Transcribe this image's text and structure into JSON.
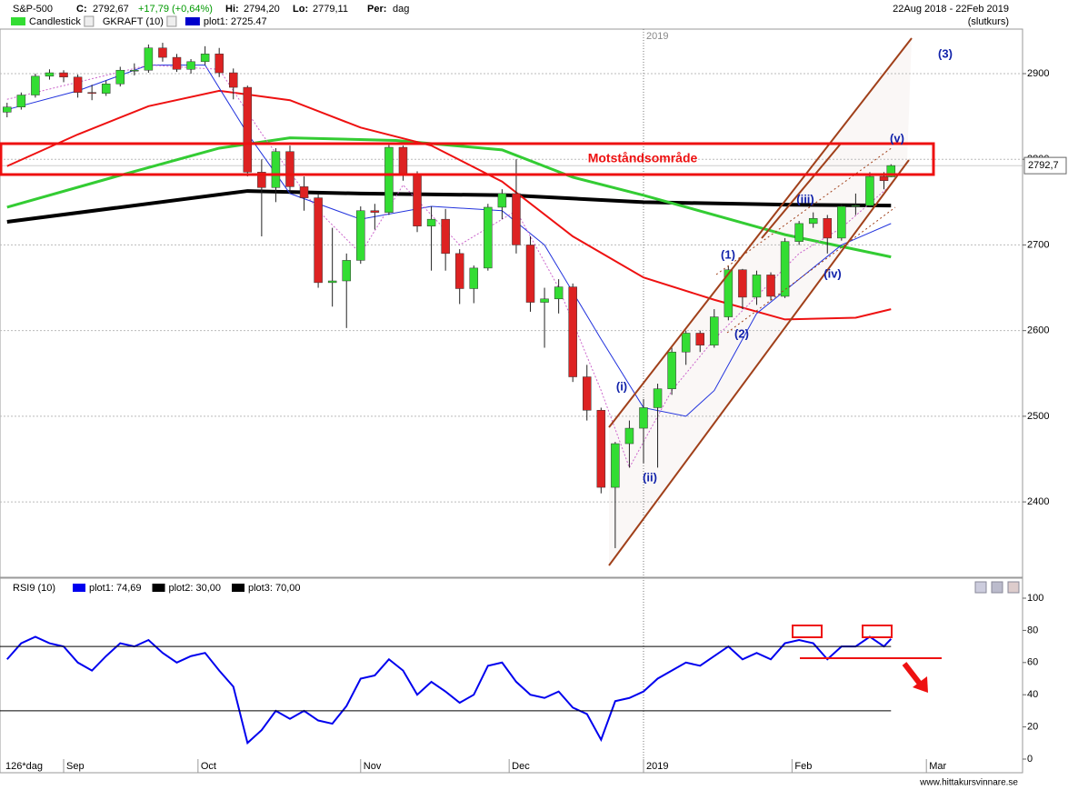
{
  "header": {
    "symbol": "S&P-500",
    "close_label": "C:",
    "close": "2792,67",
    "change": "+17,79 (+0,64%)",
    "hi_label": "Hi:",
    "hi": "2794,20",
    "lo_label": "Lo:",
    "lo": "2779,11",
    "per_label": "Per:",
    "per": "dag",
    "range": "22Aug 2018 - 22Feb 2019",
    "mode": "(slutkurs)"
  },
  "legend": [
    {
      "name": "Candlestick",
      "color": "#33dd33"
    },
    {
      "name": "GKRAFT (10)"
    },
    {
      "name": "plot1: 2725.47",
      "color": "#0000cc"
    }
  ],
  "chart_data": [
    {
      "type": "candlestick",
      "x": [
        0,
        2,
        4,
        6,
        8,
        10,
        12,
        14,
        16,
        18,
        20,
        22,
        24,
        26,
        28,
        30,
        32,
        34,
        36,
        38,
        40,
        42,
        44,
        46,
        48,
        50,
        52,
        54,
        56,
        58,
        60,
        62,
        64,
        66,
        68,
        70,
        72,
        74,
        76,
        78,
        80,
        82,
        84,
        86,
        88,
        90,
        92,
        94,
        96,
        98,
        100,
        102,
        104,
        106,
        108,
        110,
        112,
        114,
        116,
        118,
        120,
        122,
        124,
        125
      ],
      "ohlc": [
        [
          2855,
          2866,
          2849,
          2861
        ],
        [
          2861,
          2878,
          2858,
          2875
        ],
        [
          2875,
          2900,
          2872,
          2897
        ],
        [
          2897,
          2905,
          2893,
          2901
        ],
        [
          2901,
          2904,
          2890,
          2896
        ],
        [
          2896,
          2899,
          2872,
          2878
        ],
        [
          2878,
          2887,
          2869,
          2877
        ],
        [
          2877,
          2892,
          2874,
          2888
        ],
        [
          2888,
          2908,
          2885,
          2904
        ],
        [
          2904,
          2912,
          2898,
          2904
        ],
        [
          2904,
          2934,
          2901,
          2930
        ],
        [
          2930,
          2936,
          2914,
          2919
        ],
        [
          2919,
          2923,
          2902,
          2905
        ],
        [
          2905,
          2917,
          2900,
          2914
        ],
        [
          2914,
          2932,
          2910,
          2923
        ],
        [
          2923,
          2930,
          2896,
          2901
        ],
        [
          2901,
          2906,
          2870,
          2884
        ],
        [
          2884,
          2886,
          2780,
          2785
        ],
        [
          2785,
          2800,
          2710,
          2767
        ],
        [
          2767,
          2813,
          2750,
          2809
        ],
        [
          2809,
          2816,
          2760,
          2768
        ],
        [
          2768,
          2780,
          2740,
          2755
        ],
        [
          2755,
          2760,
          2650,
          2656
        ],
        [
          2656,
          2720,
          2628,
          2658
        ],
        [
          2658,
          2690,
          2603,
          2682
        ],
        [
          2682,
          2745,
          2678,
          2740
        ],
        [
          2740,
          2748,
          2718,
          2738
        ],
        [
          2738,
          2817,
          2735,
          2814
        ],
        [
          2814,
          2816,
          2775,
          2781
        ],
        [
          2781,
          2786,
          2715,
          2722
        ],
        [
          2722,
          2745,
          2670,
          2730
        ],
        [
          2730,
          2742,
          2670,
          2690
        ],
        [
          2690,
          2695,
          2631,
          2649
        ],
        [
          2649,
          2676,
          2632,
          2673
        ],
        [
          2673,
          2748,
          2670,
          2744
        ],
        [
          2744,
          2765,
          2730,
          2760
        ],
        [
          2760,
          2800,
          2690,
          2700
        ],
        [
          2700,
          2710,
          2622,
          2633
        ],
        [
          2633,
          2650,
          2580,
          2637
        ],
        [
          2637,
          2660,
          2620,
          2651
        ],
        [
          2651,
          2655,
          2540,
          2546
        ],
        [
          2546,
          2560,
          2495,
          2507
        ],
        [
          2507,
          2510,
          2410,
          2417
        ],
        [
          2417,
          2470,
          2346,
          2468
        ],
        [
          2468,
          2495,
          2440,
          2486
        ],
        [
          2486,
          2520,
          2445,
          2510
        ],
        [
          2510,
          2538,
          2440,
          2532
        ],
        [
          2532,
          2580,
          2525,
          2575
        ],
        [
          2575,
          2600,
          2560,
          2597
        ],
        [
          2597,
          2600,
          2575,
          2583
        ],
        [
          2583,
          2625,
          2580,
          2616
        ],
        [
          2616,
          2675,
          2612,
          2671
        ],
        [
          2671,
          2672,
          2625,
          2639
        ],
        [
          2639,
          2670,
          2630,
          2665
        ],
        [
          2665,
          2668,
          2635,
          2640
        ],
        [
          2640,
          2708,
          2638,
          2704
        ],
        [
          2704,
          2728,
          2700,
          2725
        ],
        [
          2725,
          2738,
          2720,
          2731
        ],
        [
          2731,
          2735,
          2690,
          2708
        ],
        [
          2708,
          2748,
          2705,
          2745
        ],
        [
          2745,
          2760,
          2735,
          2746
        ],
        [
          2746,
          2785,
          2745,
          2780
        ],
        [
          2780,
          2785,
          2765,
          2775
        ],
        [
          2779.5,
          2794.2,
          2779.11,
          2792.67
        ]
      ],
      "up_color": "#33dd33",
      "down_color": "#dd2222",
      "lines": [
        {
          "color": "#000000",
          "width": 4,
          "x": [
            0,
            34,
            50,
            71,
            90,
            110,
            125
          ],
          "values": [
            2727,
            2763,
            2760,
            2758,
            2750,
            2747,
            2746
          ]
        },
        {
          "color": "#33cc33",
          "width": 3,
          "x": [
            0,
            15,
            30,
            40,
            55,
            70,
            80,
            90,
            100,
            110,
            125
          ],
          "values": [
            2744,
            2779,
            2813,
            2825,
            2822,
            2811,
            2779,
            2758,
            2735,
            2712,
            2686
          ]
        },
        {
          "color": "#ee1111",
          "width": 2,
          "x": [
            0,
            10,
            20,
            30,
            40,
            50,
            60,
            70,
            80,
            90,
            100,
            110,
            120,
            125
          ],
          "values": [
            2792,
            2829,
            2862,
            2880,
            2869,
            2837,
            2816,
            2774,
            2710,
            2662,
            2636,
            2613,
            2615,
            2625
          ]
        },
        {
          "color": "#2233dd",
          "width": 1,
          "x": [
            0,
            10,
            20,
            28,
            34,
            40,
            50,
            60,
            70,
            76,
            84,
            90,
            96,
            100,
            106,
            112,
            118,
            125
          ],
          "values": [
            2858,
            2880,
            2910,
            2910,
            2830,
            2760,
            2730,
            2745,
            2740,
            2700,
            2590,
            2510,
            2500,
            2530,
            2620,
            2660,
            2700,
            2725
          ]
        },
        {
          "color": "#cc66cc",
          "width": 1,
          "dashed": true,
          "x": [
            0,
            10,
            20,
            30,
            36,
            44,
            50,
            56,
            64,
            72,
            78,
            84,
            88,
            94,
            100,
            106,
            112,
            118,
            125
          ],
          "values": [
            2870,
            2890,
            2910,
            2905,
            2830,
            2740,
            2690,
            2770,
            2700,
            2740,
            2650,
            2530,
            2440,
            2530,
            2590,
            2640,
            2690,
            2720,
            2770
          ]
        }
      ],
      "xlim": [
        -1,
        143.6
      ],
      "xticks": [
        {
          "value": 8,
          "label": "Sep"
        },
        {
          "value": 27,
          "label": "Oct"
        },
        {
          "value": 50,
          "label": "Nov"
        },
        {
          "value": 71,
          "label": "Dec"
        },
        {
          "value": 90,
          "label": "2019"
        },
        {
          "value": 111,
          "label": "Feb"
        },
        {
          "value": 130,
          "label": "Mar"
        }
      ],
      "ylim": [
        2312,
        2952
      ],
      "yticks": [
        2400,
        2500,
        2600,
        2700,
        2800,
        2900
      ],
      "grid": true,
      "last_price": {
        "value": 2792.67,
        "label": "2792,7"
      },
      "zone_label": "Motståndsområde",
      "annotations": [
        "(3)",
        "(v)",
        "(iii)",
        "(1)",
        "(2)",
        "(i)",
        "(ii)",
        "(iv)"
      ]
    },
    {
      "type": "line",
      "title": "RSI9 (10)",
      "x": [
        0,
        2,
        4,
        6,
        8,
        10,
        12,
        14,
        16,
        18,
        20,
        22,
        24,
        26,
        28,
        30,
        32,
        34,
        36,
        38,
        40,
        42,
        44,
        46,
        48,
        50,
        52,
        54,
        56,
        58,
        60,
        62,
        64,
        66,
        68,
        70,
        72,
        74,
        76,
        78,
        80,
        82,
        84,
        86,
        88,
        90,
        92,
        94,
        96,
        98,
        100,
        102,
        104,
        106,
        108,
        110,
        112,
        114,
        116,
        118,
        120,
        122,
        124,
        125
      ],
      "series": [
        {
          "name": "plot1: 74,69",
          "color": "#0000ee",
          "values": [
            62,
            72,
            76,
            72,
            70,
            60,
            55,
            64,
            72,
            70,
            74,
            66,
            60,
            64,
            66,
            55,
            45,
            10,
            18,
            30,
            25,
            30,
            24,
            22,
            33,
            50,
            52,
            62,
            55,
            40,
            48,
            42,
            35,
            40,
            58,
            60,
            48,
            40,
            38,
            42,
            32,
            28,
            12,
            36,
            38,
            42,
            50,
            55,
            60,
            58,
            64,
            70,
            62,
            66,
            62,
            72,
            74,
            72,
            62,
            70,
            70,
            76,
            70,
            74.69
          ]
        },
        {
          "name": "plot2: 30,00",
          "color": "#000000",
          "level": 30
        },
        {
          "name": "plot3: 70,00",
          "color": "#000000",
          "level": 70
        }
      ],
      "xlim": [
        -1,
        143.6
      ],
      "ylim": [
        0,
        100
      ],
      "yticks": [
        0,
        20,
        40,
        60,
        80,
        100
      ]
    }
  ],
  "footer": {
    "period": "126*dag",
    "site": "www.hittakursvinnare.se"
  }
}
